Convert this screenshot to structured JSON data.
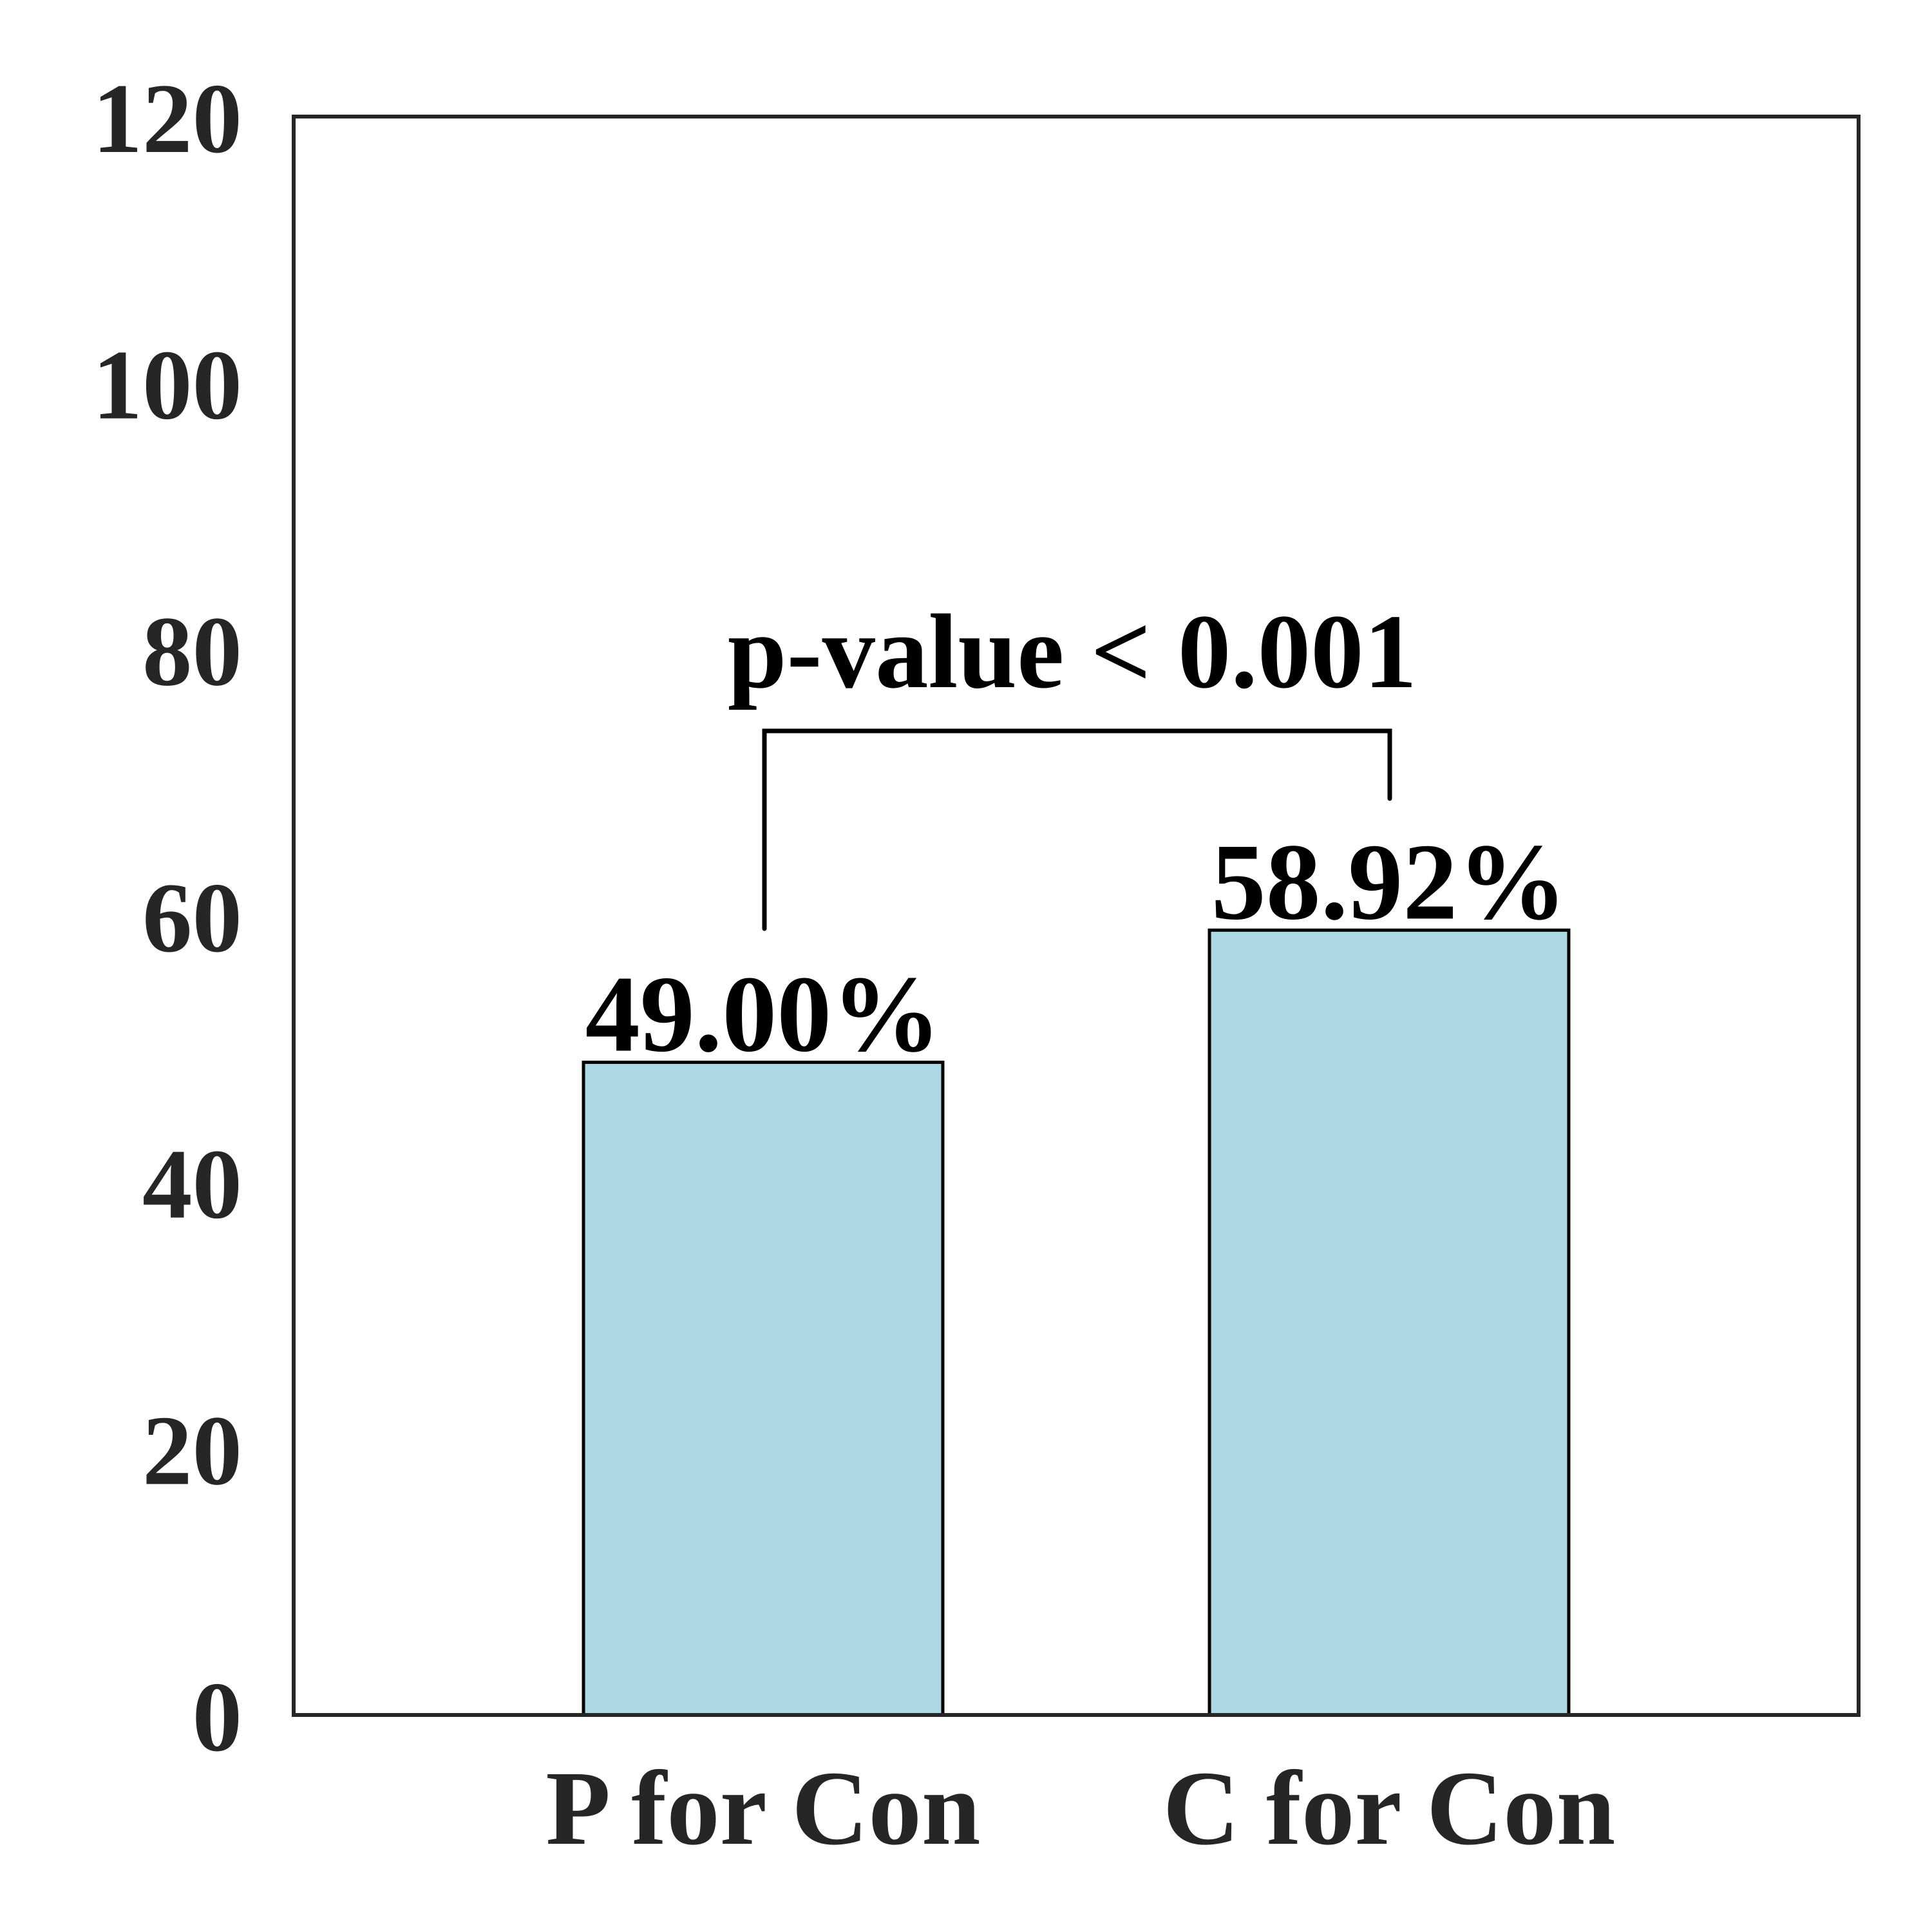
{
  "chart_data": {
    "type": "bar",
    "categories": [
      "P for Con",
      "C for Con"
    ],
    "values": [
      49.0,
      58.92
    ],
    "value_labels": [
      "49.00%",
      "58.92%"
    ],
    "color": "#add8e6",
    "ylim": [
      0,
      120
    ],
    "yticks": [
      0,
      20,
      40,
      60,
      80,
      100,
      120
    ],
    "grid": false,
    "annotation": "p-value < 0.001"
  }
}
